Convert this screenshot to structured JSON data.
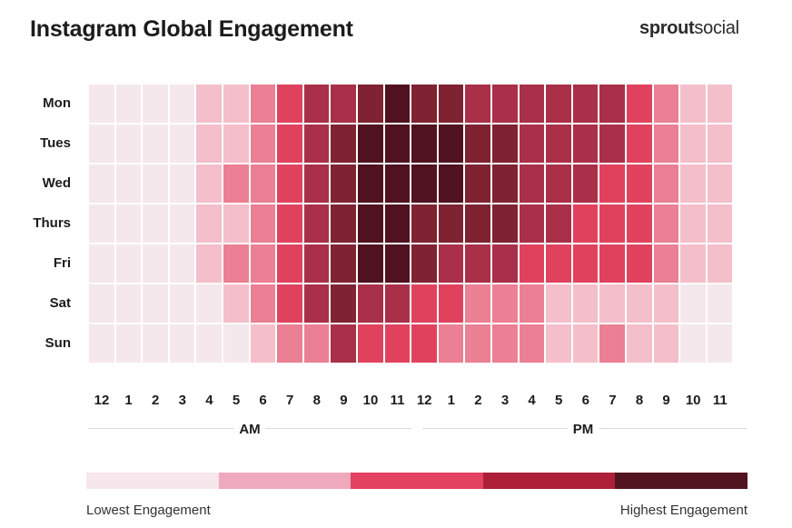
{
  "title": "Instagram Global Engagement",
  "logo": {
    "bold": "sprout",
    "light": "social"
  },
  "chart_data": {
    "type": "heatmap",
    "title": "Instagram Global Engagement",
    "rows": [
      "Mon",
      "Tues",
      "Wed",
      "Thurs",
      "Fri",
      "Sat",
      "Sun"
    ],
    "columns": [
      "12",
      "1",
      "2",
      "3",
      "4",
      "5",
      "6",
      "7",
      "8",
      "9",
      "10",
      "11",
      "12",
      "1",
      "2",
      "3",
      "4",
      "5",
      "6",
      "7",
      "8",
      "9",
      "10",
      "11"
    ],
    "periods": [
      {
        "label": "AM"
      },
      {
        "label": "PM"
      }
    ],
    "scale": {
      "min_label": "Lowest Engagement",
      "max_label": "Highest Engagement",
      "levels": 7
    },
    "cell_colors": [
      "#f5e8ed",
      "#f4bfca",
      "#eb7f93",
      "#e0425e",
      "#aa2f48",
      "#7f2333",
      "#501220"
    ],
    "legend_colors": [
      "#f6e7ec",
      "#efa9bd",
      "#e34261",
      "#ae1f38",
      "#521421"
    ],
    "values": [
      [
        0,
        0,
        0,
        0,
        1,
        1,
        2,
        3,
        4,
        4,
        5,
        6,
        5,
        5,
        4,
        4,
        4,
        4,
        4,
        4,
        3,
        2,
        1,
        1
      ],
      [
        0,
        0,
        0,
        0,
        1,
        1,
        2,
        3,
        4,
        5,
        6,
        6,
        6,
        6,
        5,
        5,
        4,
        4,
        4,
        4,
        3,
        2,
        1,
        1
      ],
      [
        0,
        0,
        0,
        0,
        1,
        2,
        2,
        3,
        4,
        5,
        6,
        6,
        6,
        6,
        5,
        5,
        4,
        4,
        4,
        3,
        3,
        2,
        1,
        1
      ],
      [
        0,
        0,
        0,
        0,
        1,
        1,
        2,
        3,
        4,
        5,
        6,
        6,
        5,
        5,
        5,
        5,
        4,
        4,
        3,
        3,
        3,
        2,
        1,
        1
      ],
      [
        0,
        0,
        0,
        0,
        1,
        2,
        2,
        3,
        4,
        5,
        6,
        6,
        5,
        4,
        4,
        4,
        3,
        3,
        3,
        3,
        3,
        2,
        1,
        1
      ],
      [
        0,
        0,
        0,
        0,
        0,
        1,
        2,
        3,
        4,
        5,
        4,
        4,
        3,
        3,
        2,
        2,
        2,
        1,
        1,
        1,
        1,
        1,
        0,
        0
      ],
      [
        0,
        0,
        0,
        0,
        0,
        0,
        1,
        2,
        2,
        4,
        3,
        3,
        3,
        2,
        2,
        2,
        2,
        1,
        1,
        2,
        1,
        1,
        0,
        0
      ]
    ]
  }
}
